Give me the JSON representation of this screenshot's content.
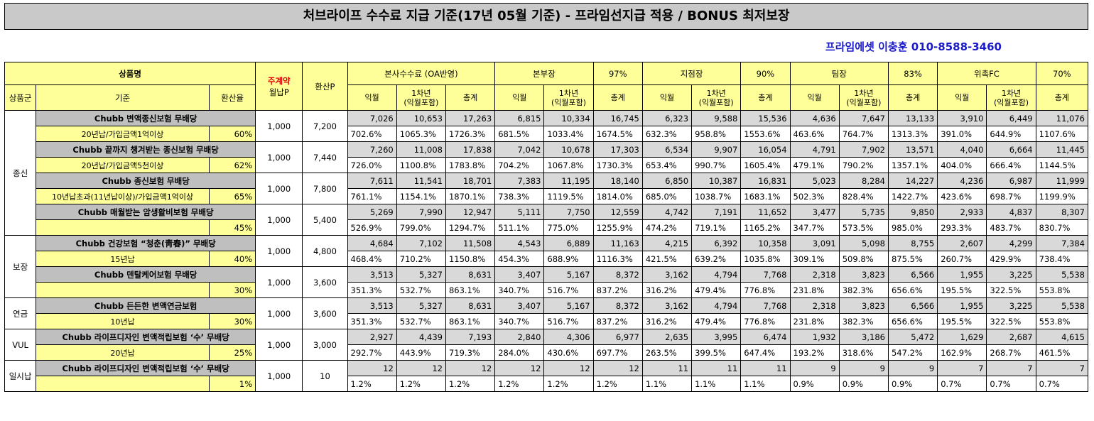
{
  "title": "처브라이프 수수료 지급 기준(17년 05월 기준) -  프라임선지급 적용 / BONUS 최저보장",
  "contact": "프라임에셋 이충훈 010-8588-3460",
  "header": {
    "product_name": "상품명",
    "main_contract_line1": "주계약",
    "main_contract_line2": "월납P",
    "converted_p": "환산P",
    "product_group": "상품군",
    "criteria": "기준",
    "conversion_rate": "환산율",
    "sub": [
      "익월",
      "1차년\n(익월포함)",
      "총계"
    ],
    "tiers": [
      {
        "name": "본사수수료 (OA반영)",
        "rate": ""
      },
      {
        "name": "본부장",
        "rate": "97%"
      },
      {
        "name": "지점장",
        "rate": "90%"
      },
      {
        "name": "팀장",
        "rate": "83%"
      },
      {
        "name": "위촉FC",
        "rate": "70%"
      }
    ]
  },
  "groups": [
    {
      "name": "종신",
      "products": [
        {
          "name": "Chubb 변액종신보험 무배당",
          "criteria": "20년납/가입금액1억이상",
          "rate": "60%",
          "premium": "1,000",
          "converted": "7,200",
          "amounts": [
            "7,026",
            "10,653",
            "17,263",
            "6,815",
            "10,334",
            "16,745",
            "6,323",
            "9,588",
            "15,536",
            "4,636",
            "7,647",
            "13,133",
            "3,910",
            "6,449",
            "11,076"
          ],
          "percents": [
            "702.6%",
            "1065.3%",
            "1726.3%",
            "681.5%",
            "1033.4%",
            "1674.5%",
            "632.3%",
            "958.8%",
            "1553.6%",
            "463.6%",
            "764.7%",
            "1313.3%",
            "391.0%",
            "644.9%",
            "1107.6%"
          ]
        },
        {
          "name": "Chubb 끝까지 챙겨받는 종신보험 무배당",
          "criteria": "20년납/가입금액5천이상",
          "rate": "62%",
          "premium": "1,000",
          "converted": "7,440",
          "amounts": [
            "7,260",
            "11,008",
            "17,838",
            "7,042",
            "10,678",
            "17,303",
            "6,534",
            "9,907",
            "16,054",
            "4,791",
            "7,902",
            "13,571",
            "4,040",
            "6,664",
            "11,445"
          ],
          "percents": [
            "726.0%",
            "1100.8%",
            "1783.8%",
            "704.2%",
            "1067.8%",
            "1730.3%",
            "653.4%",
            "990.7%",
            "1605.4%",
            "479.1%",
            "790.2%",
            "1357.1%",
            "404.0%",
            "666.4%",
            "1144.5%"
          ]
        },
        {
          "name": "Chubb 종신보험 무배당",
          "criteria": "10년납초과(11년납이상)/가입금액1억이상",
          "rate": "65%",
          "premium": "1,000",
          "converted": "7,800",
          "amounts": [
            "7,611",
            "11,541",
            "18,701",
            "7,383",
            "11,195",
            "18,140",
            "6,850",
            "10,387",
            "16,831",
            "5,023",
            "8,284",
            "14,227",
            "4,236",
            "6,987",
            "11,999"
          ],
          "percents": [
            "761.1%",
            "1154.1%",
            "1870.1%",
            "738.3%",
            "1119.5%",
            "1814.0%",
            "685.0%",
            "1038.7%",
            "1683.1%",
            "502.3%",
            "828.4%",
            "1422.7%",
            "423.6%",
            "698.7%",
            "1199.9%"
          ]
        },
        {
          "name": "Chubb 매월받는 암생활비보험 무배당",
          "criteria": "",
          "rate": "45%",
          "premium": "1,000",
          "converted": "5,400",
          "amounts": [
            "5,269",
            "7,990",
            "12,947",
            "5,111",
            "7,750",
            "12,559",
            "4,742",
            "7,191",
            "11,652",
            "3,477",
            "5,735",
            "9,850",
            "2,933",
            "4,837",
            "8,307"
          ],
          "percents": [
            "526.9%",
            "799.0%",
            "1294.7%",
            "511.1%",
            "775.0%",
            "1255.9%",
            "474.2%",
            "719.1%",
            "1165.2%",
            "347.7%",
            "573.5%",
            "985.0%",
            "293.3%",
            "483.7%",
            "830.7%"
          ]
        }
      ]
    },
    {
      "name": "보장",
      "products": [
        {
          "name": "Chubb 건강보험 “청춘(靑春)” 무배당",
          "criteria": "15년납",
          "rate": "40%",
          "premium": "1,000",
          "converted": "4,800",
          "amounts": [
            "4,684",
            "7,102",
            "11,508",
            "4,543",
            "6,889",
            "11,163",
            "4,215",
            "6,392",
            "10,358",
            "3,091",
            "5,098",
            "8,755",
            "2,607",
            "4,299",
            "7,384"
          ],
          "percents": [
            "468.4%",
            "710.2%",
            "1150.8%",
            "454.3%",
            "688.9%",
            "1116.3%",
            "421.5%",
            "639.2%",
            "1035.8%",
            "309.1%",
            "509.8%",
            "875.5%",
            "260.7%",
            "429.9%",
            "738.4%"
          ]
        },
        {
          "name": "Chubb 덴탈케어보험 무배당",
          "criteria": "",
          "rate": "30%",
          "premium": "1,000",
          "converted": "3,600",
          "amounts": [
            "3,513",
            "5,327",
            "8,631",
            "3,407",
            "5,167",
            "8,372",
            "3,162",
            "4,794",
            "7,768",
            "2,318",
            "3,823",
            "6,566",
            "1,955",
            "3,225",
            "5,538"
          ],
          "percents": [
            "351.3%",
            "532.7%",
            "863.1%",
            "340.7%",
            "516.7%",
            "837.2%",
            "316.2%",
            "479.4%",
            "776.8%",
            "231.8%",
            "382.3%",
            "656.6%",
            "195.5%",
            "322.5%",
            "553.8%"
          ]
        }
      ]
    },
    {
      "name": "연금",
      "products": [
        {
          "name": "Chubb 든든한 변액연금보험",
          "criteria": "10년납",
          "rate": "30%",
          "premium": "1,000",
          "converted": "3,600",
          "amounts": [
            "3,513",
            "5,327",
            "8,631",
            "3,407",
            "5,167",
            "8,372",
            "3,162",
            "4,794",
            "7,768",
            "2,318",
            "3,823",
            "6,566",
            "1,955",
            "3,225",
            "5,538"
          ],
          "percents": [
            "351.3%",
            "532.7%",
            "863.1%",
            "340.7%",
            "516.7%",
            "837.2%",
            "316.2%",
            "479.4%",
            "776.8%",
            "231.8%",
            "382.3%",
            "656.6%",
            "195.5%",
            "322.5%",
            "553.8%"
          ]
        }
      ]
    },
    {
      "name": "VUL",
      "products": [
        {
          "name": "Chubb 라이프디자인 변액적립보험 ‘수’ 무배당",
          "criteria": "20년납",
          "rate": "25%",
          "premium": "1,000",
          "converted": "3,000",
          "amounts": [
            "2,927",
            "4,439",
            "7,193",
            "2,840",
            "4,306",
            "6,977",
            "2,635",
            "3,995",
            "6,474",
            "1,932",
            "3,186",
            "5,472",
            "1,629",
            "2,687",
            "4,615"
          ],
          "percents": [
            "292.7%",
            "443.9%",
            "719.3%",
            "284.0%",
            "430.6%",
            "697.7%",
            "263.5%",
            "399.5%",
            "647.4%",
            "193.2%",
            "318.6%",
            "547.2%",
            "162.9%",
            "268.7%",
            "461.5%"
          ]
        }
      ]
    },
    {
      "name": "일시납",
      "products": [
        {
          "name": "Chubb 라이프디자인 변액적립보험 ‘수’ 무배당",
          "criteria": "",
          "rate": "1%",
          "premium": "1,000",
          "converted": "10",
          "amounts": [
            "12",
            "12",
            "12",
            "12",
            "12",
            "12",
            "11",
            "11",
            "11",
            "9",
            "9",
            "9",
            "7",
            "7",
            "7"
          ],
          "percents": [
            "1.2%",
            "1.2%",
            "1.2%",
            "1.2%",
            "1.2%",
            "1.2%",
            "1.1%",
            "1.1%",
            "1.1%",
            "0.9%",
            "0.9%",
            "0.9%",
            "0.7%",
            "0.7%",
            "0.7%"
          ]
        }
      ]
    }
  ]
}
